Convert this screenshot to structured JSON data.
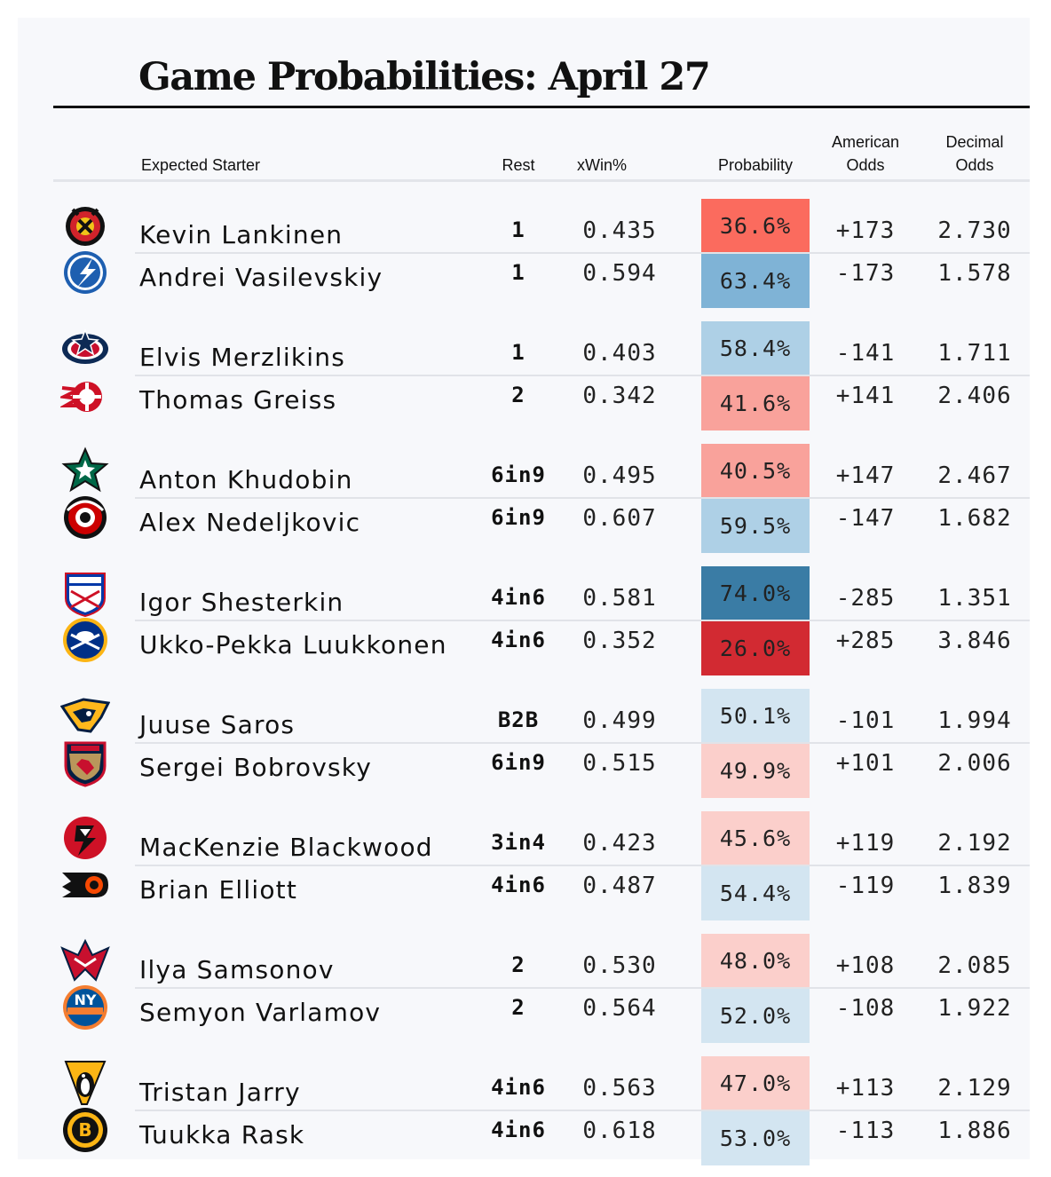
{
  "title": "Game Probabilities: April 27",
  "headers": {
    "starter": "Expected Starter",
    "rest": "Rest",
    "xwin": "xWin%",
    "probability": "Probability",
    "american_odds": [
      "American",
      "Odds"
    ],
    "decimal_odds": [
      "Decimal",
      "Odds"
    ]
  },
  "colors": {
    "strong_fav_blue": "#3a7ca5",
    "fav_blue": "#7fb3d6",
    "mid_blue": "#aed0e6",
    "light_blue": "#d3e5f1",
    "light_red": "#fbcfcb",
    "mid_red": "#f9a29b",
    "strong_red": "#fb6b5e",
    "deep_red": "#d22a32"
  },
  "games": [
    {
      "teams": [
        {
          "team_icon": "chicago-blackhawks-logo-icon",
          "starter": "Kevin Lankinen",
          "rest": "1",
          "xwin": "0.435",
          "probability": "36.6%",
          "american": "+173",
          "decimal": "2.730",
          "color": "#fb6b5e"
        },
        {
          "team_icon": "tampa-bay-lightning-logo-icon",
          "starter": "Andrei Vasilevskiy",
          "rest": "1",
          "xwin": "0.594",
          "probability": "63.4%",
          "american": "-173",
          "decimal": "1.578",
          "color": "#7fb3d6"
        }
      ]
    },
    {
      "teams": [
        {
          "team_icon": "columbus-blue-jackets-logo-icon",
          "starter": "Elvis Merzlikins",
          "rest": "1",
          "xwin": "0.403",
          "probability": "58.4%",
          "american": "-141",
          "decimal": "1.711",
          "color": "#aed0e6"
        },
        {
          "team_icon": "detroit-red-wings-logo-icon",
          "starter": "Thomas Greiss",
          "rest": "2",
          "xwin": "0.342",
          "probability": "41.6%",
          "american": "+141",
          "decimal": "2.406",
          "color": "#f9a29b"
        }
      ]
    },
    {
      "teams": [
        {
          "team_icon": "dallas-stars-logo-icon",
          "starter": "Anton Khudobin",
          "rest": "6in9",
          "xwin": "0.495",
          "probability": "40.5%",
          "american": "+147",
          "decimal": "2.467",
          "color": "#f9a29b"
        },
        {
          "team_icon": "carolina-hurricanes-logo-icon",
          "starter": "Alex Nedeljkovic",
          "rest": "6in9",
          "xwin": "0.607",
          "probability": "59.5%",
          "american": "-147",
          "decimal": "1.682",
          "color": "#aed0e6"
        }
      ]
    },
    {
      "teams": [
        {
          "team_icon": "new-york-rangers-logo-icon",
          "starter": "Igor Shesterkin",
          "rest": "4in6",
          "xwin": "0.581",
          "probability": "74.0%",
          "american": "-285",
          "decimal": "1.351",
          "color": "#3a7ca5"
        },
        {
          "team_icon": "buffalo-sabres-logo-icon",
          "starter": "Ukko-Pekka Luukkonen",
          "rest": "4in6",
          "xwin": "0.352",
          "probability": "26.0%",
          "american": "+285",
          "decimal": "3.846",
          "color": "#d22a32"
        }
      ]
    },
    {
      "teams": [
        {
          "team_icon": "nashville-predators-logo-icon",
          "starter": "Juuse Saros",
          "rest": "B2B",
          "xwin": "0.499",
          "probability": "50.1%",
          "american": "-101",
          "decimal": "1.994",
          "color": "#d3e5f1"
        },
        {
          "team_icon": "florida-panthers-logo-icon",
          "starter": "Sergei Bobrovsky",
          "rest": "6in9",
          "xwin": "0.515",
          "probability": "49.9%",
          "american": "+101",
          "decimal": "2.006",
          "color": "#fbcfcb"
        }
      ]
    },
    {
      "teams": [
        {
          "team_icon": "new-jersey-devils-logo-icon",
          "starter": "MacKenzie Blackwood",
          "rest": "3in4",
          "xwin": "0.423",
          "probability": "45.6%",
          "american": "+119",
          "decimal": "2.192",
          "color": "#fbcfcb"
        },
        {
          "team_icon": "philadelphia-flyers-logo-icon",
          "starter": "Brian Elliott",
          "rest": "4in6",
          "xwin": "0.487",
          "probability": "54.4%",
          "american": "-119",
          "decimal": "1.839",
          "color": "#d3e5f1"
        }
      ]
    },
    {
      "teams": [
        {
          "team_icon": "washington-capitals-logo-icon",
          "starter": "Ilya Samsonov",
          "rest": "2",
          "xwin": "0.530",
          "probability": "48.0%",
          "american": "+108",
          "decimal": "2.085",
          "color": "#fbcfcb"
        },
        {
          "team_icon": "new-york-islanders-logo-icon",
          "starter": "Semyon Varlamov",
          "rest": "2",
          "xwin": "0.564",
          "probability": "52.0%",
          "american": "-108",
          "decimal": "1.922",
          "color": "#d3e5f1"
        }
      ]
    },
    {
      "teams": [
        {
          "team_icon": "pittsburgh-penguins-logo-icon",
          "starter": "Tristan Jarry",
          "rest": "4in6",
          "xwin": "0.563",
          "probability": "47.0%",
          "american": "+113",
          "decimal": "2.129",
          "color": "#fbcfcb"
        },
        {
          "team_icon": "boston-bruins-logo-icon",
          "starter": "Tuukka Rask",
          "rest": "4in6",
          "xwin": "0.618",
          "probability": "53.0%",
          "american": "-113",
          "decimal": "1.886",
          "color": "#d3e5f1"
        }
      ]
    }
  ],
  "chart_data": {
    "type": "table",
    "title": "Game Probabilities: April 27",
    "columns": [
      "Expected Starter",
      "Rest",
      "xWin%",
      "Probability",
      "American Odds",
      "Decimal Odds"
    ],
    "rows": [
      [
        "Kevin Lankinen",
        "1",
        0.435,
        36.6,
        "+173",
        2.73
      ],
      [
        "Andrei Vasilevskiy",
        "1",
        0.594,
        63.4,
        "-173",
        1.578
      ],
      [
        "Elvis Merzlikins",
        "1",
        0.403,
        58.4,
        "-141",
        1.711
      ],
      [
        "Thomas Greiss",
        "2",
        0.342,
        41.6,
        "+141",
        2.406
      ],
      [
        "Anton Khudobin",
        "6in9",
        0.495,
        40.5,
        "+147",
        2.467
      ],
      [
        "Alex Nedeljkovic",
        "6in9",
        0.607,
        59.5,
        "-147",
        1.682
      ],
      [
        "Igor Shesterkin",
        "4in6",
        0.581,
        74.0,
        "-285",
        1.351
      ],
      [
        "Ukko-Pekka Luukkonen",
        "4in6",
        0.352,
        26.0,
        "+285",
        3.846
      ],
      [
        "Juuse Saros",
        "B2B",
        0.499,
        50.1,
        "-101",
        1.994
      ],
      [
        "Sergei Bobrovsky",
        "6in9",
        0.515,
        49.9,
        "+101",
        2.006
      ],
      [
        "MacKenzie Blackwood",
        "3in4",
        0.423,
        45.6,
        "+119",
        2.192
      ],
      [
        "Brian Elliott",
        "4in6",
        0.487,
        54.4,
        "-119",
        1.839
      ],
      [
        "Ilya Samsonov",
        "2",
        0.53,
        48.0,
        "+108",
        2.085
      ],
      [
        "Semyon Varlamov",
        "2",
        0.564,
        52.0,
        "-108",
        1.922
      ],
      [
        "Tristan Jarry",
        "4in6",
        0.563,
        47.0,
        "+113",
        2.129
      ],
      [
        "Tuukka Rask",
        "4in6",
        0.618,
        53.0,
        "-113",
        1.886
      ]
    ]
  }
}
